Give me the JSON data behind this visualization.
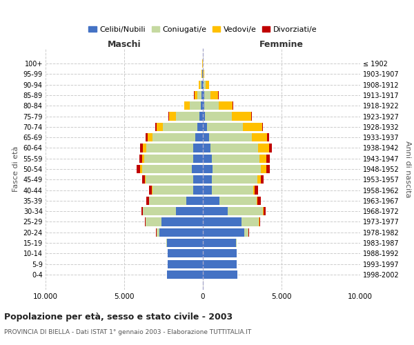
{
  "age_groups": [
    "0-4",
    "5-9",
    "10-14",
    "15-19",
    "20-24",
    "25-29",
    "30-34",
    "35-39",
    "40-44",
    "45-49",
    "50-54",
    "55-59",
    "60-64",
    "65-69",
    "70-74",
    "75-79",
    "80-84",
    "85-89",
    "90-94",
    "95-99",
    "100+"
  ],
  "birth_years": [
    "1998-2002",
    "1993-1997",
    "1988-1992",
    "1983-1987",
    "1978-1982",
    "1973-1977",
    "1968-1972",
    "1963-1967",
    "1958-1962",
    "1953-1957",
    "1948-1952",
    "1943-1947",
    "1938-1942",
    "1933-1937",
    "1928-1932",
    "1923-1927",
    "1918-1922",
    "1913-1917",
    "1908-1912",
    "1903-1907",
    "≤ 1902"
  ],
  "males": {
    "celibi": [
      2300,
      2250,
      2250,
      2300,
      2750,
      2650,
      1700,
      1050,
      600,
      620,
      680,
      620,
      600,
      500,
      350,
      200,
      120,
      100,
      70,
      30,
      10
    ],
    "coniugati": [
      0,
      0,
      5,
      20,
      200,
      1000,
      2100,
      2350,
      2600,
      3000,
      3200,
      3100,
      3000,
      2700,
      2200,
      1500,
      700,
      250,
      100,
      30,
      10
    ],
    "vedovi": [
      0,
      0,
      0,
      0,
      5,
      10,
      20,
      30,
      40,
      60,
      100,
      120,
      200,
      300,
      400,
      450,
      350,
      180,
      80,
      20,
      5
    ],
    "divorziati": [
      0,
      0,
      0,
      5,
      10,
      30,
      80,
      150,
      180,
      200,
      220,
      200,
      180,
      120,
      80,
      60,
      30,
      20,
      10,
      5,
      2
    ]
  },
  "females": {
    "nubili": [
      2200,
      2150,
      2150,
      2100,
      2650,
      2450,
      1600,
      1050,
      580,
      580,
      600,
      550,
      500,
      400,
      250,
      150,
      100,
      80,
      50,
      20,
      10
    ],
    "coniugate": [
      0,
      0,
      5,
      30,
      250,
      1100,
      2200,
      2350,
      2600,
      2900,
      3100,
      3050,
      3000,
      2700,
      2300,
      1700,
      900,
      400,
      130,
      30,
      5
    ],
    "vedove": [
      0,
      0,
      0,
      5,
      10,
      30,
      50,
      80,
      120,
      200,
      320,
      450,
      700,
      1000,
      1200,
      1200,
      900,
      500,
      200,
      30,
      5
    ],
    "divorziate": [
      0,
      0,
      0,
      5,
      15,
      50,
      130,
      200,
      200,
      200,
      240,
      220,
      200,
      100,
      70,
      50,
      25,
      15,
      8,
      3,
      1
    ]
  },
  "colors": {
    "celibi": "#4472c4",
    "coniugati": "#c5d9a0",
    "vedovi": "#ffc000",
    "divorziati": "#c00000"
  },
  "title": "Popolazione per età, sesso e stato civile - 2003",
  "subtitle": "PROVINCIA DI BIELLA - Dati ISTAT 1° gennaio 2003 - Elaborazione TUTTITALIA.IT",
  "xlabel_left": "Maschi",
  "xlabel_right": "Femmine",
  "ylabel_left": "Fasce di età",
  "ylabel_right": "Anni di nascita",
  "xlim": 10000,
  "xtick_labels": [
    "10.000",
    "5.000",
    "0",
    "5.000",
    "10.000"
  ],
  "legend_labels": [
    "Celibi/Nubili",
    "Coniugati/e",
    "Vedovi/e",
    "Divorziati/e"
  ],
  "bar_height": 0.8
}
